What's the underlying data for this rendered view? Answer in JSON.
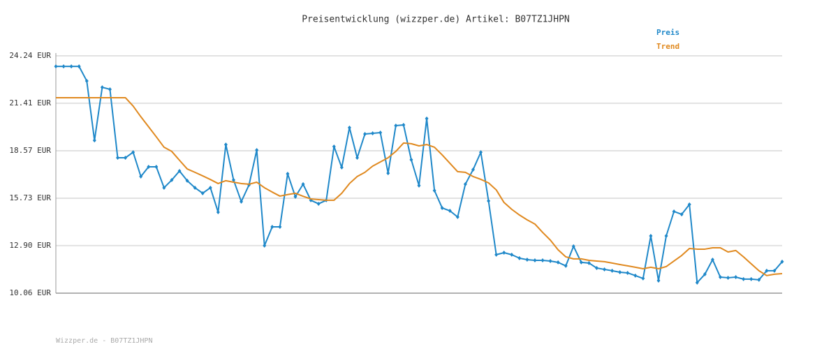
{
  "chart_data": {
    "type": "line",
    "title": "Preisentwicklung (wizzper.de) Artikel: B07TZ1JHPN",
    "footer": "Wizzper.de - B07TZ1JHPN",
    "ylim": [
      10.06,
      24.24
    ],
    "yticks": [
      {
        "value": 10.06,
        "label": "10.06 EUR"
      },
      {
        "value": 12.9,
        "label": "12.90 EUR"
      },
      {
        "value": 15.73,
        "label": "15.73 EUR"
      },
      {
        "value": 18.57,
        "label": "18.57 EUR"
      },
      {
        "value": 21.41,
        "label": "21.41 EUR"
      },
      {
        "value": 24.24,
        "label": "24.24 EUR"
      }
    ],
    "grid": true,
    "legend": "top-right",
    "series": [
      {
        "name": "Preis",
        "color": "#1f88c9",
        "markers": true,
        "values": [
          23.61,
          23.61,
          23.61,
          23.61,
          22.74,
          19.19,
          22.36,
          22.24,
          18.15,
          18.15,
          18.48,
          17.03,
          17.61,
          17.61,
          16.36,
          16.82,
          17.36,
          16.78,
          16.36,
          16.03,
          16.36,
          14.9,
          18.94,
          16.82,
          15.53,
          16.53,
          18.61,
          12.9,
          14.02,
          14.02,
          17.19,
          15.82,
          16.57,
          15.61,
          15.4,
          15.61,
          18.82,
          17.57,
          19.95,
          18.15,
          19.57,
          19.61,
          19.65,
          17.23,
          20.07,
          20.11,
          18.03,
          16.49,
          20.49,
          16.19,
          15.15,
          14.98,
          14.61,
          16.57,
          17.44,
          18.48,
          15.57,
          12.36,
          12.48,
          12.36,
          12.15,
          12.06,
          12.02,
          12.02,
          11.98,
          11.9,
          11.69,
          12.86,
          11.9,
          11.86,
          11.56,
          11.48,
          11.4,
          11.31,
          11.27,
          11.11,
          10.94,
          13.48,
          10.81,
          13.48,
          14.94,
          14.77,
          15.36,
          10.69,
          11.19,
          12.06,
          11.02,
          10.98,
          11.02,
          10.9,
          10.9,
          10.86,
          11.4,
          11.4,
          11.94
        ]
      },
      {
        "name": "Trend",
        "color": "#e0891f",
        "markers": false,
        "values": [
          21.74,
          21.74,
          21.74,
          21.74,
          21.74,
          21.74,
          21.74,
          21.74,
          21.74,
          21.74,
          21.24,
          20.6,
          20.0,
          19.4,
          18.78,
          18.53,
          18.0,
          17.48,
          17.28,
          17.07,
          16.85,
          16.61,
          16.78,
          16.69,
          16.61,
          16.57,
          16.69,
          16.36,
          16.1,
          15.86,
          15.95,
          16.03,
          15.85,
          15.69,
          15.65,
          15.61,
          15.61,
          16.03,
          16.61,
          17.03,
          17.28,
          17.65,
          17.9,
          18.15,
          18.53,
          19.03,
          18.99,
          18.86,
          18.94,
          18.78,
          18.32,
          17.82,
          17.32,
          17.28,
          17.03,
          16.86,
          16.65,
          16.23,
          15.48,
          15.07,
          14.73,
          14.44,
          14.19,
          13.69,
          13.23,
          12.65,
          12.23,
          12.11,
          12.11,
          12.02,
          11.98,
          11.94,
          11.86,
          11.77,
          11.69,
          11.61,
          11.52,
          11.61,
          11.52,
          11.65,
          11.98,
          12.31,
          12.73,
          12.69,
          12.69,
          12.77,
          12.77,
          12.52,
          12.61,
          12.23,
          11.81,
          11.4,
          11.11,
          11.19,
          11.23
        ]
      }
    ]
  }
}
